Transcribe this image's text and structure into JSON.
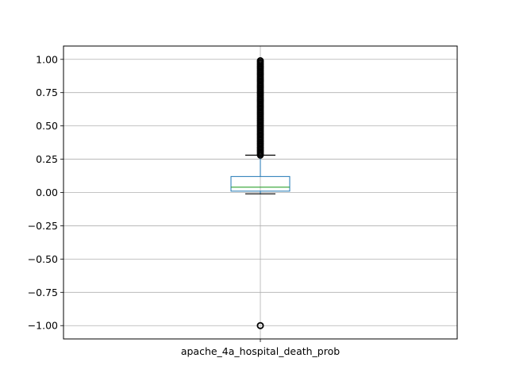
{
  "chart_data": {
    "type": "box",
    "title": "",
    "xlabel": "",
    "ylabel": "",
    "categories": [
      "apache_4a_hospital_death_prob"
    ],
    "ylim": [
      -1.1,
      1.1
    ],
    "yticks": [
      1.0,
      0.75,
      0.5,
      0.25,
      0.0,
      -0.25,
      -0.5,
      -0.75,
      -1.0
    ],
    "ytick_labels": [
      "1.00",
      "0.75",
      "0.50",
      "0.25",
      "0.00",
      "−0.25",
      "−0.50",
      "−0.75",
      "−1.00"
    ],
    "grid": true,
    "boxes": [
      {
        "name": "apache_4a_hospital_death_prob",
        "whisker_low": -0.01,
        "q1": 0.01,
        "median": 0.04,
        "q3": 0.12,
        "whisker_high": 0.28,
        "outliers_high_range": [
          0.28,
          0.99
        ],
        "outliers_low": [
          -1.0
        ]
      }
    ],
    "colors": {
      "box": "#1f77b4",
      "median": "#2ca02c",
      "whisker": "#1f77b4",
      "cap": "#000000",
      "flier": "#000000",
      "grid": "#b0b0b0"
    }
  }
}
